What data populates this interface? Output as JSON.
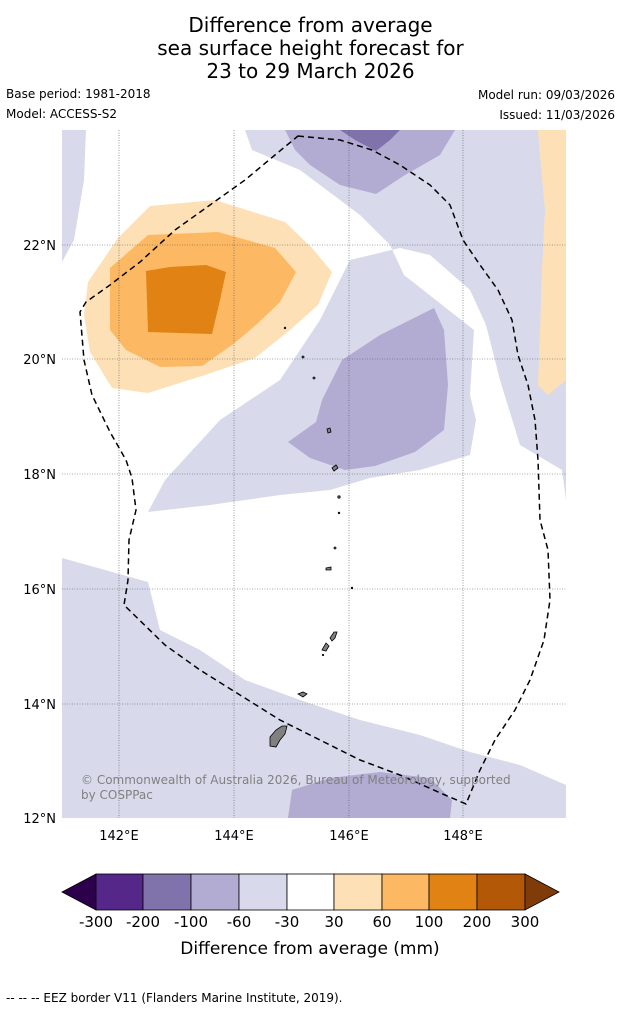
{
  "title": {
    "line1": "Difference from average",
    "line2": "sea surface height forecast for",
    "line3": "23 to 29 March 2026"
  },
  "meta": {
    "base_period": "Base period: 1981-2018",
    "model": "Model: ACCESS-S2",
    "model_run": "Model run: 09/03/2026",
    "issued": "Issued: 11/03/2026"
  },
  "map": {
    "lat_labels": [
      "22°N",
      "20°N",
      "18°N",
      "16°N",
      "14°N",
      "12°N"
    ],
    "lon_labels": [
      "142°E",
      "144°E",
      "146°E",
      "148°E"
    ],
    "copyright_line1": "© Commonwealth of Australia 2026, Bureau of Meteorology, supported",
    "copyright_line2": "by COSPPac"
  },
  "colorbar": {
    "ticks": [
      "-300",
      "-200",
      "-100",
      "-60",
      "-30",
      "30",
      "60",
      "100",
      "200",
      "300"
    ],
    "colors": [
      "#2d004b",
      "#542788",
      "#8073ac",
      "#b2abd2",
      "#d8daeb",
      "#ffffff",
      "#fee0b6",
      "#fdb863",
      "#e08214",
      "#b35806",
      "#7f3b08"
    ],
    "label": "Difference from average (mm)"
  },
  "footer": {
    "legend": "--  --  -- EEZ border V11 (Flanders Marine Institute, 2019)."
  }
}
